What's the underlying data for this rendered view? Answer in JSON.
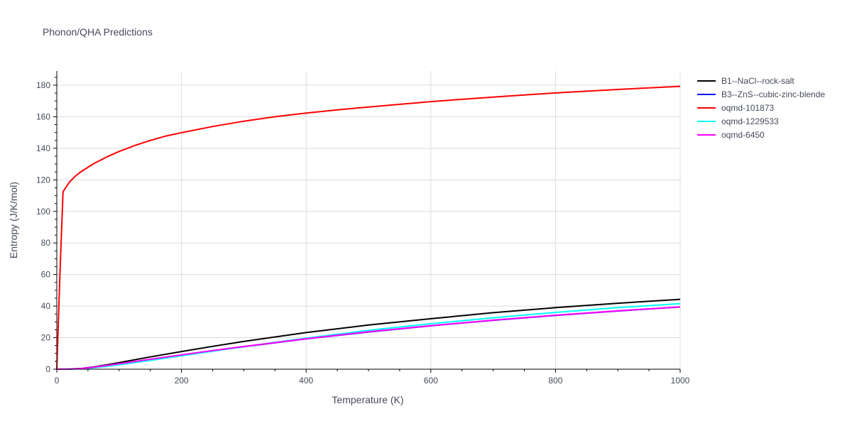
{
  "chart_data": {
    "type": "line",
    "title": "Phonon/QHA Predictions",
    "xlabel": "Temperature (K)",
    "ylabel": "Entropy (J/K/mol)",
    "xlim": [
      0,
      1000
    ],
    "ylim": [
      0,
      189
    ],
    "xticks": [
      0,
      200,
      400,
      600,
      800,
      1000
    ],
    "yticks": [
      0,
      20,
      40,
      60,
      80,
      100,
      120,
      140,
      160,
      180
    ],
    "grid": true,
    "legend_position": "top-right",
    "series": [
      {
        "name": "B1--NaCl--rock-salt",
        "color": "#000000",
        "x": [
          0,
          20,
          40,
          60,
          80,
          100,
          150,
          200,
          250,
          300,
          400,
          500,
          600,
          700,
          800,
          900,
          1000
        ],
        "y": [
          0,
          0.1,
          0.5,
          1.5,
          2.8,
          4.2,
          7.8,
          11.2,
          14.5,
          17.6,
          23.2,
          28.0,
          32.0,
          35.8,
          39.0,
          41.8,
          44.3
        ]
      },
      {
        "name": "B3--ZnS--cubic-zinc-blende",
        "color": "#0000ff",
        "x": [
          0,
          20,
          40,
          60,
          80,
          100,
          150,
          200,
          250,
          300,
          400,
          500,
          600,
          700,
          800,
          900,
          1000
        ],
        "y": [
          0,
          0.05,
          0.4,
          1.2,
          2.2,
          3.3,
          6.1,
          8.9,
          11.6,
          14.2,
          19.2,
          23.6,
          27.5,
          31.0,
          34.1,
          36.9,
          39.4
        ]
      },
      {
        "name": "oqmd-101873",
        "color": "#ff0000",
        "x": [
          0,
          5,
          10,
          20,
          30,
          40,
          50,
          60,
          70,
          80,
          100,
          125,
          150,
          175,
          200,
          250,
          300,
          350,
          400,
          450,
          500,
          600,
          700,
          800,
          900,
          1000
        ],
        "y": [
          0,
          60,
          112.5,
          118.5,
          122.5,
          125.5,
          128.0,
          130.5,
          132.5,
          134.5,
          138.0,
          141.8,
          145.0,
          147.8,
          149.9,
          153.8,
          157.2,
          160.0,
          162.3,
          164.4,
          166.2,
          169.6,
          172.5,
          175.1,
          177.3,
          179.3
        ]
      },
      {
        "name": "oqmd-1229533",
        "color": "#00ffff",
        "x": [
          0,
          20,
          40,
          60,
          80,
          100,
          150,
          200,
          250,
          300,
          400,
          500,
          600,
          700,
          800,
          900,
          1000
        ],
        "y": [
          0,
          0.04,
          0.3,
          0.9,
          1.8,
          2.8,
          5.6,
          8.5,
          11.4,
          14.3,
          19.7,
          24.6,
          28.8,
          32.6,
          36.0,
          39.0,
          41.6
        ]
      },
      {
        "name": "oqmd-6450",
        "color": "#ff00ff",
        "x": [
          0,
          20,
          40,
          60,
          80,
          100,
          150,
          200,
          250,
          300,
          400,
          500,
          600,
          700,
          800,
          900,
          1000
        ],
        "y": [
          0,
          0.06,
          0.45,
          1.3,
          2.4,
          3.5,
          6.3,
          9.1,
          11.8,
          14.4,
          19.3,
          23.7,
          27.6,
          31.1,
          34.2,
          37.0,
          39.5
        ]
      }
    ]
  }
}
